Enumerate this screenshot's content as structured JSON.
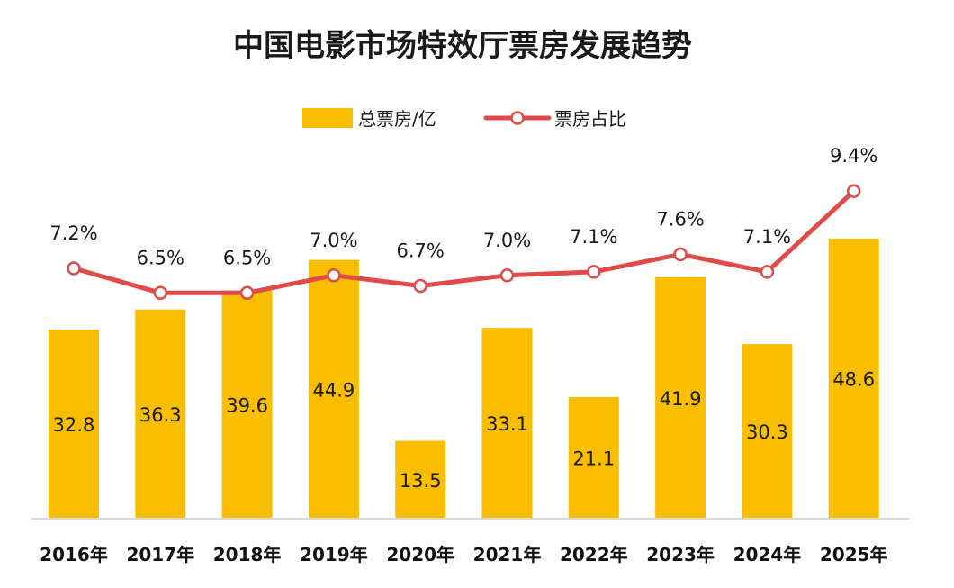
{
  "chart_data": {
    "type": "bar",
    "title": "中国电影市场特效厅票房发展趋势",
    "categories": [
      "2016年",
      "2017年",
      "2018年",
      "2019年",
      "2020年",
      "2021年",
      "2022年",
      "2023年",
      "2024年",
      "2025年"
    ],
    "series": [
      {
        "name": "总票房/亿",
        "type": "bar",
        "values": [
          32.8,
          36.3,
          39.6,
          44.9,
          13.5,
          33.1,
          21.1,
          41.9,
          30.3,
          48.6
        ],
        "labels": [
          "32.8",
          "36.3",
          "39.6",
          "44.9",
          "13.5",
          "33.1",
          "21.1",
          "41.9",
          "30.3",
          "48.6"
        ],
        "color": "#F9BE00"
      },
      {
        "name": "票房占比",
        "type": "line",
        "values": [
          7.2,
          6.5,
          6.5,
          7.0,
          6.7,
          7.0,
          7.1,
          7.6,
          7.1,
          9.4
        ],
        "labels": [
          "7.2%",
          "6.5%",
          "6.5%",
          "7.0%",
          "6.7%",
          "7.0%",
          "7.1%",
          "7.6%",
          "7.1%",
          "9.4%"
        ],
        "color": "#E04B49"
      }
    ],
    "legend_position": "top-center",
    "grid": false
  }
}
